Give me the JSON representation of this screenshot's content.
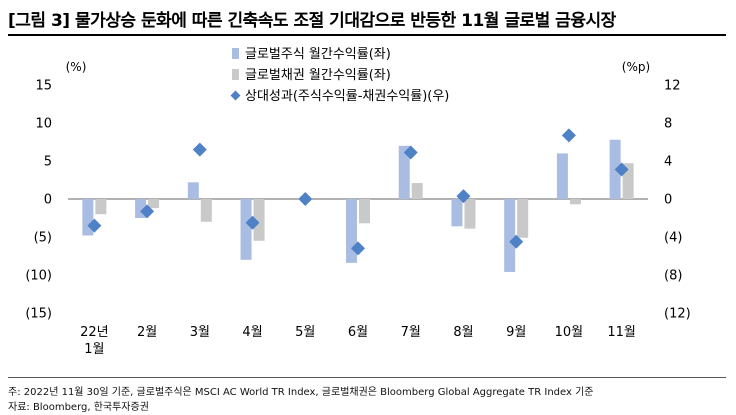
{
  "title": "[그림 3] 물가상승 둔화에 따른 긴축속도 조절 기대감으로 반등한 11월 글로벌 금융시장",
  "notes": {
    "line1": "주: 2022년 11월 30일 기준, 글로벌주식은 MSCI AC World TR Index, 글로벌채권은 Bloomberg Global Aggregate TR Index 기준",
    "line2": "자료: Bloomberg, 한국투자증권"
  },
  "colors": {
    "stock": "#a9bde3",
    "bond": "#c9c9c9",
    "diamond": "#4f81c7"
  },
  "chart_data": {
    "type": "bar",
    "categories": [
      "22년 1월",
      "2월",
      "3월",
      "4월",
      "5월",
      "6월",
      "7월",
      "8월",
      "9월",
      "10월",
      "11월"
    ],
    "category_lines": [
      [
        "22년",
        "1월"
      ],
      [
        "2월"
      ],
      [
        "3월"
      ],
      [
        "4월"
      ],
      [
        "5월"
      ],
      [
        "6월"
      ],
      [
        "7월"
      ],
      [
        "8월"
      ],
      [
        "9월"
      ],
      [
        "10월"
      ],
      [
        "11월"
      ]
    ],
    "left_axis": {
      "unit": "(%)",
      "min": -15,
      "max": 15,
      "ticks": [
        15,
        10,
        5,
        0,
        -5,
        -10,
        -15
      ],
      "tick_labels": [
        "15",
        "10",
        "5",
        "0",
        "(5)",
        "(10)",
        "(15)"
      ]
    },
    "right_axis": {
      "unit": "(%p)",
      "min": -12,
      "max": 12,
      "ticks": [
        12,
        8,
        4,
        0,
        -4,
        -8,
        -12
      ],
      "tick_labels": [
        "12",
        "8",
        "4",
        "0",
        "(4)",
        "(8)",
        "(12)"
      ]
    },
    "series": [
      {
        "name": "글로벌주식 월간수익률(좌)",
        "type": "bar",
        "axis": "left",
        "values": [
          -4.8,
          -2.5,
          2.2,
          -8.0,
          0.0,
          -8.4,
          7.0,
          -3.6,
          -9.6,
          6.0,
          7.8
        ]
      },
      {
        "name": "글로벌채권 월간수익률(좌)",
        "type": "bar",
        "axis": "left",
        "values": [
          -2.0,
          -1.2,
          -3.0,
          -5.5,
          0.0,
          -3.2,
          2.1,
          -3.9,
          -5.1,
          -0.7,
          4.7
        ]
      },
      {
        "name": "상대성과(주식수익률-채권수익률)(우)",
        "type": "diamond",
        "axis": "right",
        "values": [
          -2.8,
          -1.3,
          5.2,
          -2.5,
          0.0,
          -5.2,
          4.9,
          0.3,
          -4.5,
          6.7,
          3.1
        ]
      }
    ]
  }
}
